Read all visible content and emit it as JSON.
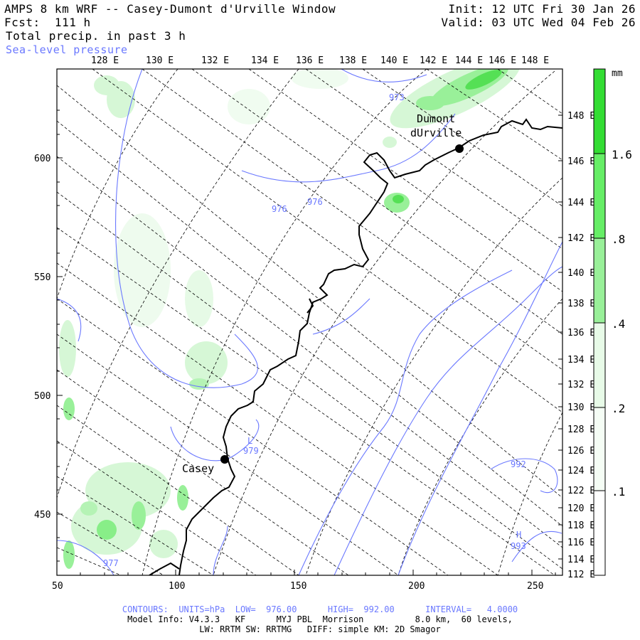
{
  "header": {
    "title": "AMPS 8 km WRF -- Casey-Dumont d'Urville Window",
    "fcst": "Fcst:  111 h",
    "field": "Total precip. in past 3 h",
    "contour_field": "Sea-level pressure",
    "init": "Init: 12 UTC Fri 30 Jan 26",
    "valid": "Valid: 03 UTC Wed 04 Feb 26"
  },
  "map": {
    "top_lon_labels": [
      "128 E",
      "130 E",
      "132 E",
      "134 E",
      "136 E",
      "138 E",
      "140 E",
      "142 E",
      "144 E",
      "146 E",
      "148 E"
    ],
    "right_lon_labels": [
      "148 E",
      "146 E",
      "144 E",
      "142 E",
      "140 E",
      "138 E",
      "136 E",
      "134 E",
      "132 E",
      "130 E",
      "128 E",
      "126 E",
      "124 E",
      "122 E",
      "120 E",
      "118 E",
      "116 E",
      "114 E",
      "112 E"
    ],
    "y_axis_labels": [
      "600",
      "550",
      "500",
      "450"
    ],
    "x_axis_labels": [
      "50",
      "100",
      "150",
      "200",
      "250"
    ],
    "stations": [
      {
        "name_line1": "Dumont",
        "name_line2": "dUrville"
      },
      {
        "name_line1": "Casey"
      }
    ],
    "contour_labels": [
      "973",
      "976",
      "976",
      "979",
      "L",
      "992",
      "H",
      "993",
      "977"
    ]
  },
  "colorbar": {
    "units": "mm",
    "levels": [
      "1.6",
      ".8",
      ".4",
      ".2",
      ".1"
    ],
    "colors": [
      "#33dd33",
      "#66ee66",
      "#99f099",
      "#c8f5c8",
      "#e8fbe8",
      "#ffffff"
    ]
  },
  "footer": {
    "contours": "CONTOURS:  UNITS=hPa  LOW=  976.00      HIGH=  992.00      INTERVAL=   4.0000",
    "model_info": "Model Info: V4.3.3   KF      MYJ PBL  Morrison          8.0 km,  60 levels,",
    "physics": "LW: RRTM SW: RRTMG   DIFF: simple KM: 2D Smagor"
  },
  "colors": {
    "contour": "#6a78ff",
    "coast": "#000000",
    "precip": "#66ee66"
  }
}
